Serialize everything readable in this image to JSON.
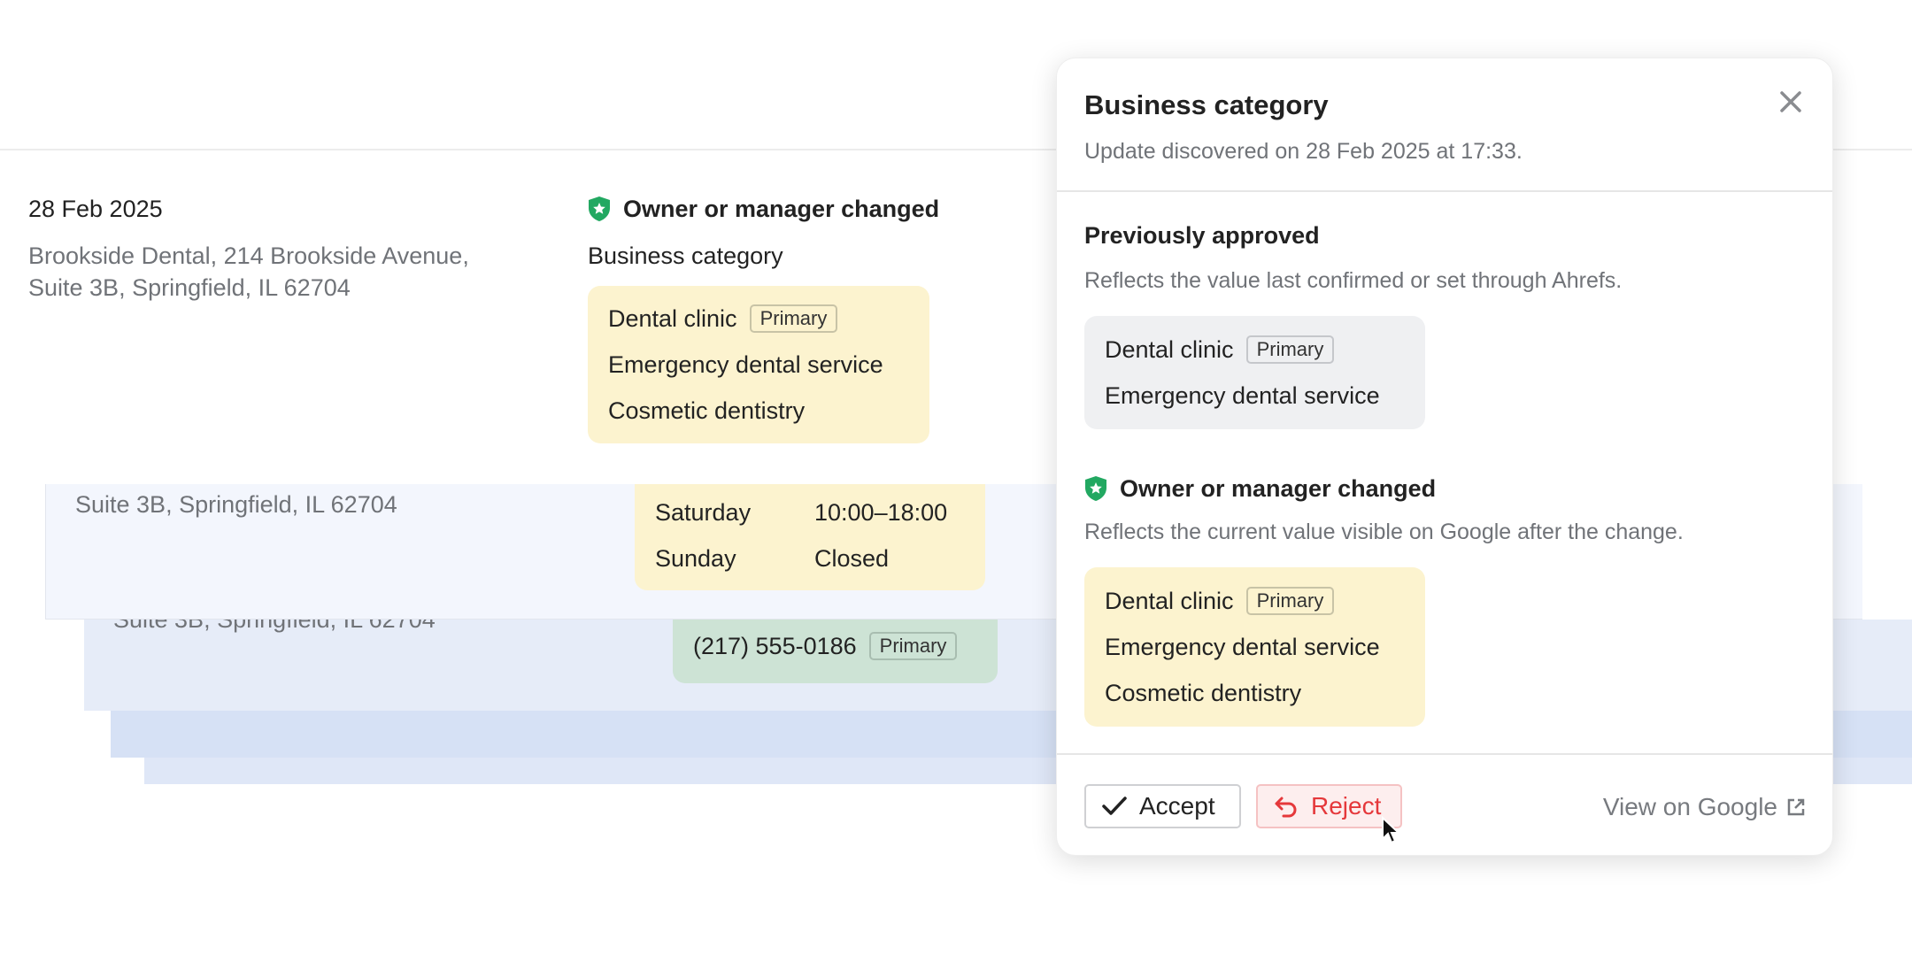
{
  "record": {
    "date": "28 Feb 2025",
    "address_line1": "Brookside Dental, 214 Brookside Avenue,",
    "address_line2": "Suite 3B, Springfield, IL 62704",
    "status": "Owner or manager changed",
    "field": "Business category",
    "categories": [
      {
        "name": "Dental clinic",
        "badge": "Primary"
      },
      {
        "name": "Emergency dental service"
      },
      {
        "name": "Cosmetic dentistry"
      }
    ]
  },
  "record2": {
    "address_line2": "Suite 3B, Springfield, IL 62704",
    "hours": [
      {
        "day": "Saturday",
        "time": "10:00–18:00"
      },
      {
        "day": "Sunday",
        "time": "Closed"
      }
    ]
  },
  "record3": {
    "address_line2": "Suite 3B, Springfield, IL 62704",
    "phone": "(217) 555-0186",
    "badge": "Primary"
  },
  "popover": {
    "title": "Business category",
    "subtitle": "Update discovered on 28 Feb 2025 at 17:33.",
    "previous": {
      "heading": "Previously approved",
      "description": "Reflects the value last confirmed or set through Ahrefs.",
      "categories": [
        {
          "name": "Dental clinic",
          "badge": "Primary"
        },
        {
          "name": "Emergency dental service"
        }
      ]
    },
    "current": {
      "heading": "Owner or manager changed",
      "description": "Reflects the current value visible on Google after the change.",
      "categories": [
        {
          "name": "Dental clinic",
          "badge": "Primary"
        },
        {
          "name": "Emergency dental service"
        },
        {
          "name": "Cosmetic dentistry"
        }
      ]
    },
    "accept_label": "Accept",
    "reject_label": "Reject",
    "view_label": "View on Google"
  },
  "colors": {
    "accent_green": "#22a861",
    "reject_red": "#e5383b",
    "change_yellow": "#fcf3cf"
  }
}
